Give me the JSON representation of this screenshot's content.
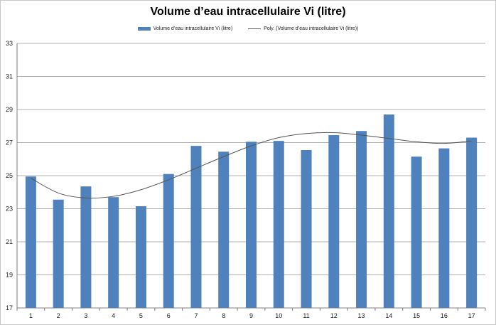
{
  "chart_data": {
    "type": "bar",
    "title": "Volume d’eau intracellulaire Vi (litre)",
    "xlabel": "",
    "ylabel": "",
    "categories": [
      "1",
      "2",
      "3",
      "4",
      "5",
      "6",
      "7",
      "8",
      "9",
      "10",
      "11",
      "12",
      "13",
      "14",
      "15",
      "16",
      "17"
    ],
    "series": [
      {
        "name": "Volume d’eau intracellulaire Vi (litre)",
        "type": "bar",
        "color": "#4f81bd",
        "values": [
          24.95,
          23.55,
          24.35,
          23.7,
          23.15,
          25.1,
          26.8,
          26.45,
          27.05,
          27.1,
          26.55,
          27.45,
          27.7,
          28.7,
          26.15,
          26.65,
          27.3
        ]
      },
      {
        "name": "Poly. (Volume d’eau intracellulaire Vi (litre))",
        "type": "trendline",
        "color": "#555555",
        "values": [
          24.85,
          23.95,
          23.65,
          23.75,
          24.15,
          24.75,
          25.45,
          26.15,
          26.8,
          27.3,
          27.55,
          27.6,
          27.45,
          27.25,
          27.05,
          26.95,
          27.1
        ]
      }
    ],
    "ylim": [
      17,
      33
    ],
    "yticks": [
      "17",
      "19",
      "21",
      "23",
      "25",
      "27",
      "29",
      "31",
      "33"
    ],
    "grid": true,
    "legend_position": "top"
  }
}
